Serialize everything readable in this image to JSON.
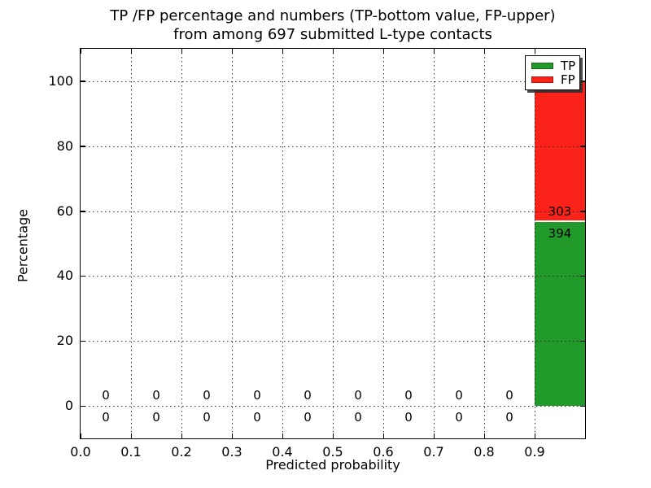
{
  "figure": {
    "title_line1": "TP /FP percentage and numbers (TP-bottom value, FP-upper)",
    "title_line2": "from among 697 submitted L-type contacts",
    "xlabel": "Predicted probability",
    "ylabel": "Percentage"
  },
  "chart_data": {
    "type": "bar",
    "stacked": true,
    "title": "TP /FP percentage and numbers (TP-bottom value, FP-upper) from among 697 submitted L-type contacts",
    "xlabel": "Predicted probability",
    "ylabel": "Percentage",
    "xlim": [
      0.0,
      1.0
    ],
    "ylim": [
      -10,
      110
    ],
    "xticks": [
      0.0,
      0.1,
      0.2,
      0.3,
      0.4,
      0.5,
      0.6,
      0.7,
      0.8,
      0.9
    ],
    "xtick_labels": [
      "0.0",
      "0.1",
      "0.2",
      "0.3",
      "0.4",
      "0.5",
      "0.6",
      "0.7",
      "0.8",
      "0.9"
    ],
    "yticks": [
      0,
      20,
      40,
      60,
      80,
      100
    ],
    "ytick_labels": [
      "0",
      "20",
      "40",
      "60",
      "80",
      "100"
    ],
    "grid": "dotted",
    "legend_position": "upper right",
    "total_contacts": 697,
    "bin_width": 0.1,
    "bins": [
      {
        "x0": 0.0,
        "x1": 0.1,
        "tp": 0,
        "fp": 0
      },
      {
        "x0": 0.1,
        "x1": 0.2,
        "tp": 0,
        "fp": 0
      },
      {
        "x0": 0.2,
        "x1": 0.3,
        "tp": 0,
        "fp": 0
      },
      {
        "x0": 0.3,
        "x1": 0.4,
        "tp": 0,
        "fp": 0
      },
      {
        "x0": 0.4,
        "x1": 0.5,
        "tp": 0,
        "fp": 0
      },
      {
        "x0": 0.5,
        "x1": 0.6,
        "tp": 0,
        "fp": 0
      },
      {
        "x0": 0.6,
        "x1": 0.7,
        "tp": 0,
        "fp": 0
      },
      {
        "x0": 0.7,
        "x1": 0.8,
        "tp": 0,
        "fp": 0
      },
      {
        "x0": 0.8,
        "x1": 0.9,
        "tp": 0,
        "fp": 0
      },
      {
        "x0": 0.9,
        "x1": 1.0,
        "tp": 394,
        "fp": 303
      }
    ],
    "series": [
      {
        "name": "TP",
        "color": "#219a2b",
        "values_pct": [
          0,
          0,
          0,
          0,
          0,
          0,
          0,
          0,
          0,
          56.5
        ]
      },
      {
        "name": "FP",
        "color": "#fb221a",
        "values_pct": [
          0,
          0,
          0,
          0,
          0,
          0,
          0,
          0,
          0,
          43.5
        ]
      }
    ]
  }
}
